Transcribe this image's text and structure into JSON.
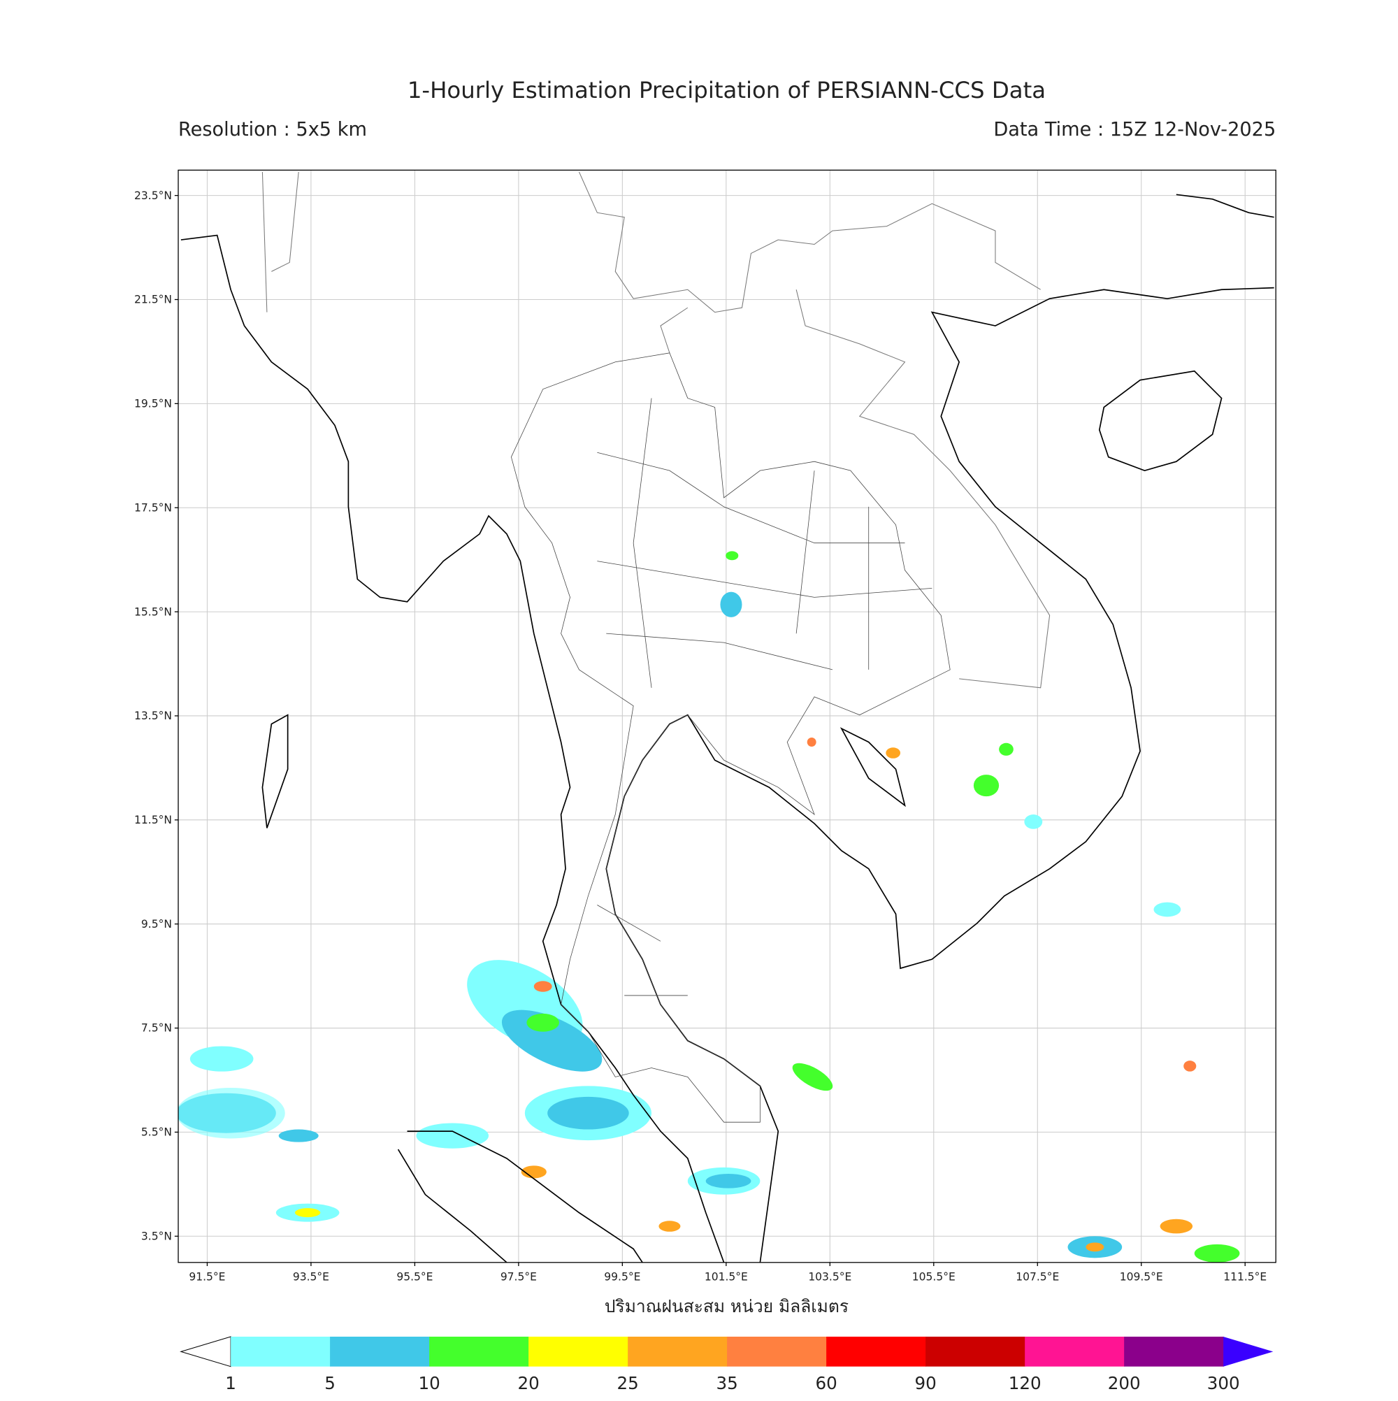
{
  "header": {
    "title": "1-Hourly Estimation Precipitation of PERSIANN-CCS Data",
    "resolution": "Resolution : 5x5 km",
    "data_time": "Data Time : 15Z 12-Nov-2025"
  },
  "map": {
    "lat_labels": [
      "23.5°N",
      "21.5°N",
      "19.5°N",
      "17.5°N",
      "15.5°N",
      "13.5°N",
      "11.5°N",
      "9.5°N",
      "7.5°N",
      "5.5°N",
      "3.5°N"
    ],
    "lon_labels": [
      "91.5°E",
      "93.5°E",
      "95.5°E",
      "97.5°E",
      "99.5°E",
      "101.5°E",
      "103.5°E",
      "105.5°E",
      "107.5°E",
      "109.5°E",
      "111.5°E"
    ],
    "xlabel": "ปริมาณฝนสะสม หน่วย มิลลิเมตร"
  },
  "colorbar": {
    "levels": [
      "1",
      "5",
      "10",
      "20",
      "25",
      "35",
      "60",
      "90",
      "120",
      "200",
      "300"
    ],
    "colors": [
      "#80ffff",
      "#40c8e8",
      "#44ff2c",
      "#ffff00",
      "#ffa520",
      "#ff8040",
      "#ff0000",
      "#cc0000",
      "#ff1493",
      "#8b008b"
    ],
    "under_color": "#ffffff",
    "over_color": "#3a00ff"
  }
}
